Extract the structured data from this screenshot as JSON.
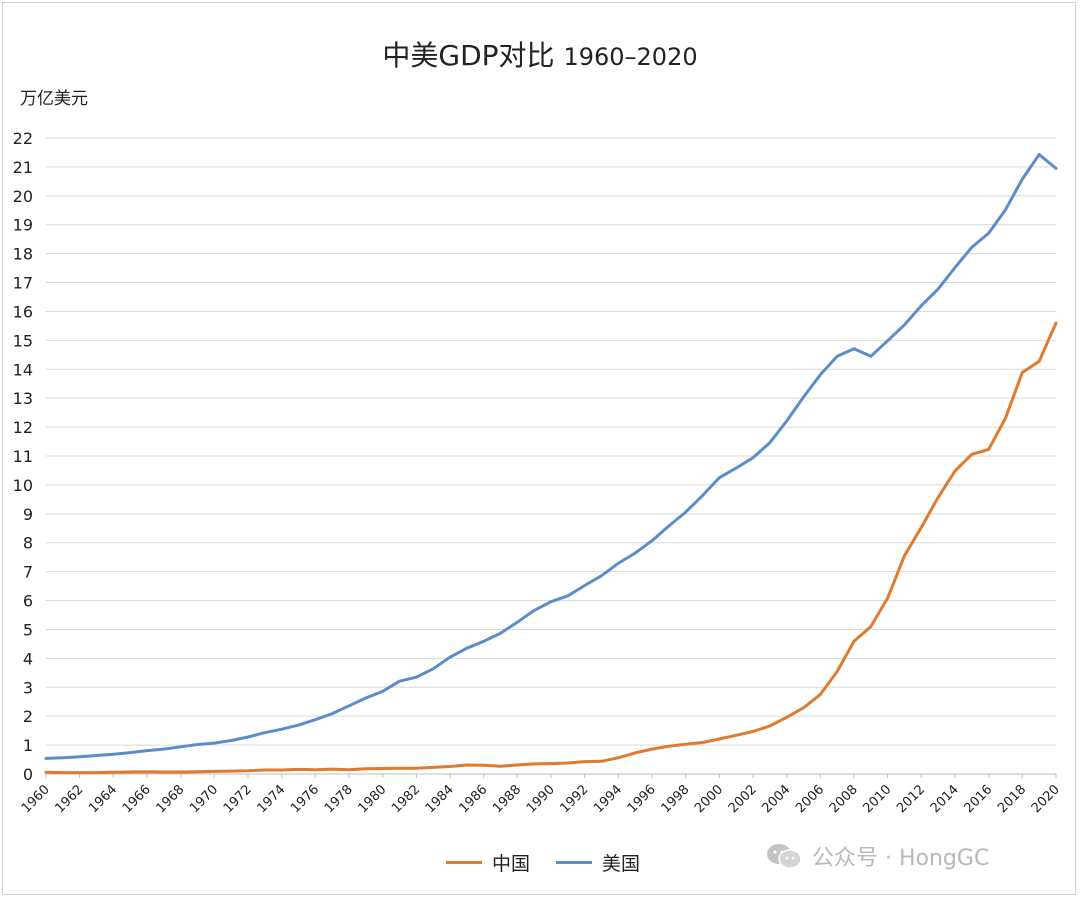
{
  "chart_data": {
    "type": "line",
    "title": "中美GDP对比",
    "title_suffix": "1960–2020",
    "ylabel": "万亿美元",
    "xlabel": "",
    "ylim": [
      0,
      22
    ],
    "yticks": [
      0,
      1,
      2,
      3,
      4,
      5,
      6,
      7,
      8,
      9,
      10,
      11,
      12,
      13,
      14,
      15,
      16,
      17,
      18,
      19,
      20,
      21,
      22
    ],
    "xticks": [
      "1960",
      "1962",
      "1964",
      "1966",
      "1968",
      "1970",
      "1972",
      "1974",
      "1976",
      "1978",
      "1980",
      "1982",
      "1984",
      "1986",
      "1988",
      "1990",
      "1992",
      "1994",
      "1996",
      "1998",
      "2000",
      "2002",
      "2004",
      "2006",
      "2008",
      "2010",
      "2012",
      "2014",
      "2016",
      "2018",
      "2020"
    ],
    "x": [
      1960,
      1961,
      1962,
      1963,
      1964,
      1965,
      1966,
      1967,
      1968,
      1969,
      1970,
      1971,
      1972,
      1973,
      1974,
      1975,
      1976,
      1977,
      1978,
      1979,
      1980,
      1981,
      1982,
      1983,
      1984,
      1985,
      1986,
      1987,
      1988,
      1989,
      1990,
      1991,
      1992,
      1993,
      1994,
      1995,
      1996,
      1997,
      1998,
      1999,
      2000,
      2001,
      2002,
      2003,
      2004,
      2005,
      2006,
      2007,
      2008,
      2009,
      2010,
      2011,
      2012,
      2013,
      2014,
      2015,
      2016,
      2017,
      2018,
      2019,
      2020
    ],
    "grid": true,
    "legend_position": "bottom",
    "series": [
      {
        "name": "中国",
        "color": "#e07a2e",
        "values": [
          0.06,
          0.05,
          0.05,
          0.05,
          0.06,
          0.07,
          0.08,
          0.07,
          0.07,
          0.08,
          0.09,
          0.1,
          0.11,
          0.14,
          0.14,
          0.16,
          0.15,
          0.17,
          0.15,
          0.18,
          0.19,
          0.2,
          0.2,
          0.23,
          0.26,
          0.31,
          0.3,
          0.27,
          0.31,
          0.35,
          0.36,
          0.38,
          0.43,
          0.44,
          0.56,
          0.73,
          0.86,
          0.96,
          1.03,
          1.09,
          1.21,
          1.34,
          1.47,
          1.66,
          1.96,
          2.29,
          2.75,
          3.55,
          4.59,
          5.1,
          6.09,
          7.55,
          8.53,
          9.57,
          10.48,
          11.06,
          11.23,
          12.31,
          13.89,
          14.28,
          15.6
        ]
      },
      {
        "name": "美国",
        "color": "#5b8dc9",
        "values": [
          0.54,
          0.56,
          0.6,
          0.64,
          0.68,
          0.74,
          0.81,
          0.86,
          0.94,
          1.02,
          1.07,
          1.16,
          1.28,
          1.43,
          1.55,
          1.69,
          1.88,
          2.09,
          2.36,
          2.63,
          2.86,
          3.21,
          3.35,
          3.64,
          4.04,
          4.35,
          4.59,
          4.87,
          5.25,
          5.66,
          5.96,
          6.16,
          6.52,
          6.86,
          7.29,
          7.64,
          8.07,
          8.58,
          9.06,
          9.63,
          10.25,
          10.58,
          10.94,
          11.46,
          12.21,
          13.04,
          13.81,
          14.45,
          14.71,
          14.45,
          14.99,
          15.54,
          16.2,
          16.78,
          17.52,
          18.22,
          18.71,
          19.52,
          20.58,
          21.43,
          20.95
        ]
      }
    ]
  },
  "watermark": {
    "icon": "wechat-icon",
    "text": "公众号 · HongGC"
  }
}
